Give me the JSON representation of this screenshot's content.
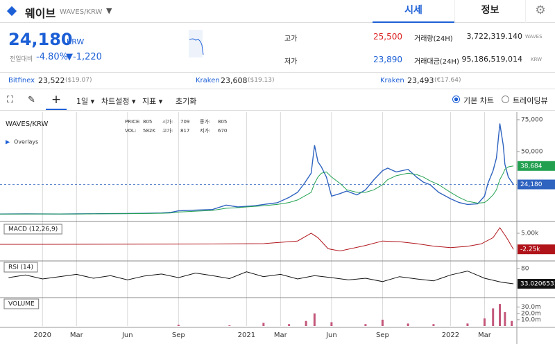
{
  "header": {
    "coin": "웨이브",
    "pair": "WAVES/KRW",
    "tabs": [
      "시세",
      "정보"
    ]
  },
  "summary": {
    "price": "24,180",
    "unit": "KRW",
    "change_label": "전일대비",
    "change_pct": "-4.80%",
    "change_abs": "▼-1,220",
    "stats": [
      {
        "label": "고가",
        "value": "25,500"
      },
      {
        "label": "저가",
        "value": "23,890"
      }
    ],
    "volume": [
      {
        "label": "거래량(24H)",
        "value": "3,722,319.140",
        "unit": "WAVES"
      },
      {
        "label": "거래대금(24H)",
        "value": "95,186,519,014",
        "unit": "KRW"
      }
    ]
  },
  "exchanges": [
    {
      "name": "Bitfinex",
      "price": "23,522",
      "ref": "($19.07)"
    },
    {
      "name": "Kraken",
      "price": "23,608",
      "ref": "($19.13)"
    },
    {
      "name": "Kraken",
      "price": "23,493",
      "ref": "(€17.64)"
    }
  ],
  "toolbar": {
    "interval": "1일",
    "items": [
      "차트설정",
      "지표",
      "초기화"
    ],
    "chart_modes": [
      "기본 차트",
      "트레이딩뷰"
    ]
  },
  "time_axis": {
    "xlim": [
      -2.5,
      27.9
    ],
    "xticks": [
      {
        "value": 0,
        "label": "2020"
      },
      {
        "value": 2,
        "label": "Mar"
      },
      {
        "value": 5,
        "label": "Jun"
      },
      {
        "value": 8,
        "label": "Sep"
      },
      {
        "value": 12,
        "label": "2021"
      },
      {
        "value": 14,
        "label": "Mar"
      },
      {
        "value": 17,
        "label": "Jun"
      },
      {
        "value": 20,
        "label": "Sep"
      },
      {
        "value": 24,
        "label": "2022"
      },
      {
        "value": 26,
        "label": "Mar"
      }
    ]
  },
  "chart_data": [
    {
      "type": "line",
      "title": "WAVES/KRW",
      "overlays": "Overlays",
      "info": [
        [
          "PRICE:",
          "805"
        ],
        [
          "시가:",
          "709"
        ],
        [
          "종가:",
          "805"
        ],
        [
          "VOL:",
          "582K"
        ],
        [
          "고가:",
          "817"
        ],
        [
          "저가:",
          "670"
        ]
      ],
      "x": [
        -2.5,
        -1,
        0,
        1,
        2,
        3,
        4,
        5,
        6,
        7,
        7.5,
        8,
        9,
        10,
        10.8,
        11.5,
        12,
        12.5,
        13,
        13.8,
        14.5,
        15,
        15.4,
        15.8,
        16,
        16.2,
        16.4,
        16.7,
        17,
        17.5,
        17.9,
        18.5,
        19,
        19.5,
        20,
        20.3,
        20.8,
        21.5,
        22,
        22.4,
        22.8,
        23.3,
        24,
        24.5,
        25,
        25.6,
        26,
        26.2,
        26.5,
        26.7,
        26.9,
        27.1,
        27.2,
        27.4,
        27.7
      ],
      "series": [
        {
          "color": "#2f63c0",
          "values": [
            1000,
            1100,
            1050,
            1000,
            1100,
            1200,
            1300,
            1400,
            1500,
            1800,
            2200,
            3500,
            4000,
            4500,
            8000,
            6500,
            7000,
            7500,
            8500,
            9800,
            14000,
            18000,
            25000,
            33000,
            55000,
            42000,
            38000,
            30000,
            15000,
            17000,
            19000,
            16000,
            20000,
            28000,
            35000,
            37000,
            34000,
            36000,
            30000,
            26000,
            24000,
            18000,
            13000,
            10000,
            8500,
            9000,
            15000,
            25000,
            35000,
            45000,
            72000,
            55000,
            40000,
            30000,
            24180
          ],
          "last_label": {
            "value": 24180,
            "label": "24,180"
          }
        },
        {
          "color": "#22a050",
          "values": [
            1000,
            1050,
            1050,
            1050,
            1050,
            1100,
            1200,
            1300,
            1400,
            1600,
            1800,
            2500,
            3200,
            3800,
            5500,
            6000,
            6500,
            7000,
            7500,
            8500,
            10000,
            12000,
            15000,
            18000,
            25000,
            30000,
            33000,
            34000,
            30000,
            25000,
            20000,
            18000,
            18000,
            20000,
            24000,
            28000,
            31000,
            33000,
            32000,
            30000,
            27000,
            24000,
            18000,
            14000,
            11000,
            9500,
            10000,
            12000,
            16000,
            20000,
            28000,
            33000,
            36000,
            38000,
            38684
          ],
          "last_label": {
            "value": 38684,
            "label": "38,684"
          }
        }
      ],
      "ylim": [
        -3800,
        80400
      ],
      "yticks": [
        {
          "value": 75000,
          "label": "75,000"
        },
        {
          "value": 50000,
          "label": "50,000"
        }
      ]
    },
    {
      "type": "line",
      "title": "MACD (12,26,9)",
      "x": [
        -2.5,
        0,
        5,
        10,
        13,
        15,
        15.8,
        16.2,
        16.8,
        17.5,
        19,
        20,
        21,
        22,
        23,
        24,
        25,
        25.8,
        26.5,
        26.9,
        27.3,
        27.7
      ],
      "series": [
        {
          "color": "#b0141a",
          "values": [
            0,
            0,
            50,
            150,
            300,
            1500,
            5000,
            3000,
            -2000,
            -3000,
            -500,
            1500,
            1200,
            300,
            -800,
            -1500,
            -900,
            200,
            3000,
            7500,
            3000,
            -2250
          ],
          "last_label": {
            "value": -2250,
            "label": "-2.25k"
          }
        }
      ],
      "ylim": [
        -6875,
        9690
      ],
      "yticks": [
        {
          "value": 5000,
          "label": "5.00k"
        }
      ]
    },
    {
      "type": "line",
      "title": "RSI (14)",
      "x": [
        -2,
        -1,
        0,
        1,
        2,
        3,
        4,
        5,
        6,
        7,
        8,
        9,
        10,
        11,
        12,
        13,
        14,
        15,
        16,
        17,
        18,
        19,
        20,
        21,
        22,
        23,
        24,
        25,
        26,
        27,
        27.7
      ],
      "series": [
        {
          "color": "#111111",
          "values": [
            52,
            60,
            48,
            55,
            62,
            50,
            58,
            45,
            57,
            63,
            52,
            66,
            58,
            49,
            70,
            55,
            62,
            48,
            58,
            52,
            45,
            50,
            40,
            55,
            48,
            42,
            60,
            72,
            50,
            38,
            33.02065312
          ],
          "last_label": {
            "value": 33.02065312,
            "label": "33.02065312"
          }
        }
      ],
      "ylim": [
        -5,
        103
      ],
      "yticks": [
        80
      ]
    },
    {
      "type": "bar",
      "title": "VOLUME",
      "x": [
        8,
        11,
        13,
        14.5,
        15.5,
        16,
        17,
        19,
        20,
        21.5,
        23,
        25,
        26,
        26.5,
        26.9,
        27.2,
        27.6
      ],
      "series": [
        {
          "color": "#c4587a",
          "values": [
            2000000,
            1000000,
            5000000,
            3000000,
            8000000,
            20000000,
            6000000,
            3000000,
            10000000,
            4000000,
            3000000,
            4000000,
            12000000,
            28000000,
            35000000,
            22000000,
            8000000
          ]
        }
      ],
      "ylim": [
        0,
        45000000
      ],
      "yticks": [
        {
          "value": 30000000,
          "label": "30.0m"
        },
        {
          "value": 20000000,
          "label": "20.0m"
        },
        {
          "value": 10000000,
          "label": "10.0m"
        }
      ]
    }
  ]
}
